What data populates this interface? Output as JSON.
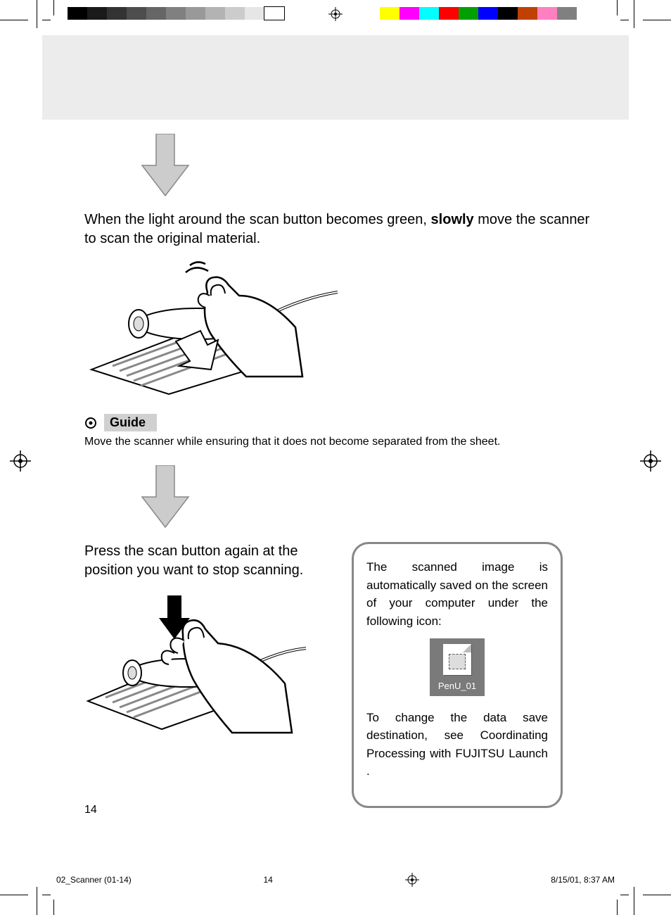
{
  "print_marks": {
    "grayscale_bar": [
      "#000000",
      "#1a1a1a",
      "#333333",
      "#4d4d4d",
      "#666666",
      "#808080",
      "#999999",
      "#b3b3b3",
      "#cccccc",
      "#e6e6e6",
      "#ffffff"
    ],
    "color_bar": [
      "#ffff00",
      "#ff00ff",
      "#00ffff",
      "#ff0000",
      "#00a000",
      "#0000ff",
      "#000000",
      "#c04000",
      "#ff80c0",
      "#808080"
    ]
  },
  "header_band_bg": "#ececec",
  "step1": {
    "text_before_bold": "When the light around the scan button becomes green, ",
    "bold_word": "slowly",
    "text_after_bold": " move the scanner to scan the original material."
  },
  "guide": {
    "label": "Guide",
    "label_bg": "#d0d0d0",
    "text": "Move the scanner while ensuring that it does not become separated from the sheet."
  },
  "step2": {
    "text": "Press the scan button again at the position you want to stop scanning."
  },
  "info_box": {
    "border_color": "#888888",
    "para1": "The scanned image is automatically saved on the screen of your computer under the following icon:",
    "icon_label": "PenU_01",
    "icon_bg": "#7a7a7a",
    "para2": "To change the data save destination, see  Coordinating Processing with FUJITSU Launch ."
  },
  "page_number": "14",
  "footer": {
    "file": "02_Scanner (01-14)",
    "page": "14",
    "datetime": "8/15/01, 8:37 AM"
  },
  "styling": {
    "arrow_fill": "#cccccc",
    "arrow_stroke": "#888888",
    "illustration_stroke": "#000000",
    "page_bg": "#ffffff"
  }
}
